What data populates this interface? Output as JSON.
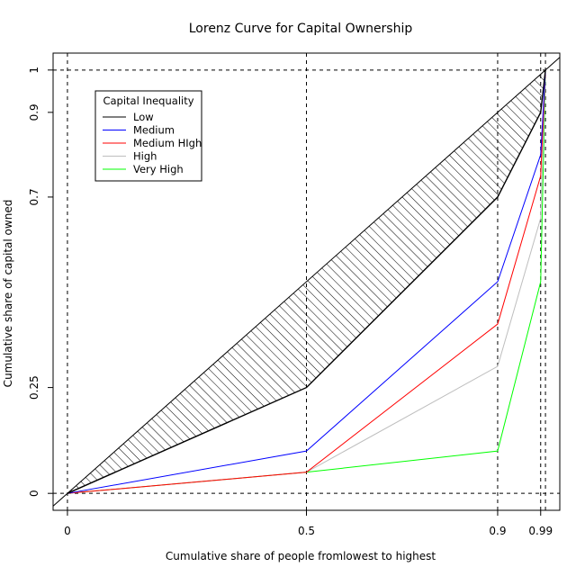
{
  "chart_data": {
    "type": "line",
    "title": "Lorenz Curve for Capital Ownership",
    "xlabel": "Cumulative share of people fromlowest to highest",
    "ylabel": "Cumulative share of capital owned",
    "xlim": [
      -0.03,
      1.03
    ],
    "ylim": [
      -0.04,
      1.04
    ],
    "x_ticks": [
      {
        "value": 0,
        "label": "0"
      },
      {
        "value": 0.5,
        "label": "0.5"
      },
      {
        "value": 0.9,
        "label": "0.9"
      },
      {
        "value": 0.99,
        "label": "0.99"
      }
    ],
    "y_ticks": [
      {
        "value": 0,
        "label": "0"
      },
      {
        "value": 0.25,
        "label": "0.25"
      },
      {
        "value": 0.7,
        "label": "0.7"
      },
      {
        "value": 0.9,
        "label": "0.9"
      },
      {
        "value": 1,
        "label": "1"
      }
    ],
    "reference_lines": {
      "vertical": [
        0,
        0.5,
        0.9,
        0.99,
        1
      ],
      "horizontal": [
        0,
        1
      ],
      "style": "dashed"
    },
    "equality_line": {
      "x": [
        -0.04,
        1.04
      ],
      "y": [
        -0.04,
        1.04
      ],
      "color": "#000000"
    },
    "shaded_region": {
      "between": [
        "equality",
        "Low"
      ],
      "pattern": "diagonal-hatch",
      "color": "#000000"
    },
    "legend": {
      "title": "Capital Inequality",
      "position": "top-left"
    },
    "series": [
      {
        "name": "Low",
        "color": "#000000",
        "x": [
          0,
          0.5,
          0.9,
          0.99,
          1
        ],
        "y": [
          0,
          0.25,
          0.7,
          0.9,
          1
        ]
      },
      {
        "name": "Medium",
        "color": "#0000ff",
        "x": [
          0,
          0.5,
          0.9,
          0.99,
          1
        ],
        "y": [
          0,
          0.1,
          0.5,
          0.8,
          1
        ]
      },
      {
        "name": "Medium HIgh",
        "color": "#ff0000",
        "x": [
          0,
          0.5,
          0.9,
          0.99,
          1
        ],
        "y": [
          0,
          0.05,
          0.4,
          0.75,
          1
        ]
      },
      {
        "name": "High",
        "color": "#bebebe",
        "x": [
          0,
          0.5,
          0.9,
          0.99,
          1
        ],
        "y": [
          0,
          0.05,
          0.3,
          0.65,
          1
        ]
      },
      {
        "name": "Very High",
        "color": "#00ff00",
        "x": [
          0,
          0.5,
          0.9,
          0.99,
          1
        ],
        "y": [
          0,
          0.05,
          0.1,
          0.5,
          1
        ]
      }
    ]
  }
}
